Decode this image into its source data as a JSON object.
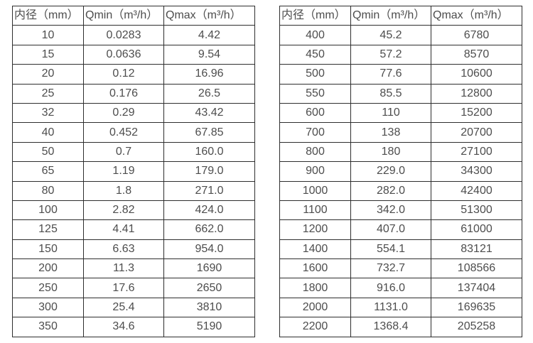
{
  "page": {
    "background_color": "#ffffff",
    "text_color": "#4d4d4d",
    "border_color": "#2e2e2e"
  },
  "chart_data": [
    {
      "type": "table",
      "title": "",
      "columns": [
        "内径（mm）",
        "Qmin（m³/h）",
        "Qmax（m³/h）"
      ],
      "rows": [
        [
          "10",
          "0.0283",
          "4.42"
        ],
        [
          "15",
          "0.0636",
          "9.54"
        ],
        [
          "20",
          "0.12",
          "16.96"
        ],
        [
          "25",
          "0.176",
          "26.5"
        ],
        [
          "32",
          "0.29",
          "43.42"
        ],
        [
          "40",
          "0.452",
          "67.85"
        ],
        [
          "50",
          "0.7",
          "160.0"
        ],
        [
          "65",
          "1.19",
          "179.0"
        ],
        [
          "80",
          "1.8",
          "271.0"
        ],
        [
          "100",
          "2.82",
          "424.0"
        ],
        [
          "125",
          "4.41",
          "662.0"
        ],
        [
          "150",
          "6.63",
          "954.0"
        ],
        [
          "200",
          "11.3",
          "1690"
        ],
        [
          "250",
          "17.6",
          "2650"
        ],
        [
          "300",
          "25.4",
          "3810"
        ],
        [
          "350",
          "34.6",
          "5190"
        ]
      ]
    },
    {
      "type": "table",
      "title": "",
      "columns": [
        "内径（mm）",
        "Qmin（m³/h）",
        "Qmax（m³/h）"
      ],
      "rows": [
        [
          "400",
          "45.2",
          "6780"
        ],
        [
          "450",
          "57.2",
          "8570"
        ],
        [
          "500",
          "77.6",
          "10600"
        ],
        [
          "550",
          "85.5",
          "12800"
        ],
        [
          "600",
          "110",
          "15200"
        ],
        [
          "700",
          "138",
          "20700"
        ],
        [
          "800",
          "180",
          "27100"
        ],
        [
          "900",
          "229.0",
          "34300"
        ],
        [
          "1000",
          "282.0",
          "42400"
        ],
        [
          "1100",
          "342.0",
          "51300"
        ],
        [
          "1200",
          "407.0",
          "61000"
        ],
        [
          "1400",
          "554.1",
          "83121"
        ],
        [
          "1600",
          "732.7",
          "108566"
        ],
        [
          "1800",
          "916.0",
          "137404"
        ],
        [
          "2000",
          "1131.0",
          "169635"
        ],
        [
          "2200",
          "1368.4",
          "205258"
        ]
      ]
    }
  ]
}
